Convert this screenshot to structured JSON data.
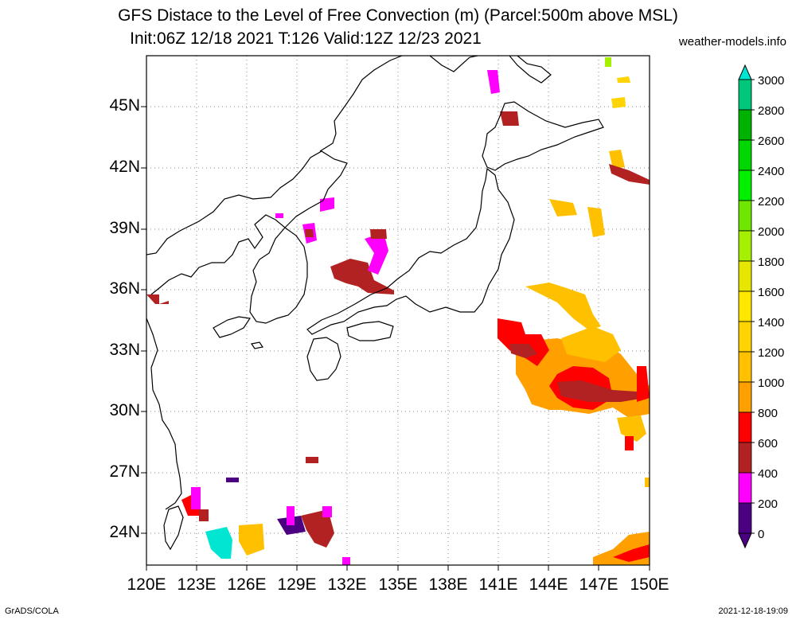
{
  "header": {
    "title_line1": "GFS Distace to the Level of Free Convection (m) (Parcel:500m above MSL)",
    "title_line2": "Init:06Z 12/18 2021 T:126 Valid:12Z 12/23 2021",
    "credit": "weather-models.info"
  },
  "axes": {
    "lat_labels": [
      "45N",
      "42N",
      "39N",
      "36N",
      "33N",
      "30N",
      "27N",
      "24N"
    ],
    "lon_labels": [
      "120E",
      "123E",
      "126E",
      "129E",
      "132E",
      "135E",
      "138E",
      "141E",
      "144E",
      "147E",
      "150E"
    ]
  },
  "colorbar": {
    "labels": [
      "3000",
      "2800",
      "2600",
      "2400",
      "2200",
      "2000",
      "1800",
      "1600",
      "1400",
      "1200",
      "1000",
      "800",
      "600",
      "400",
      "200",
      "0"
    ],
    "colors": [
      "#00e6d2",
      "#00c87a",
      "#00b200",
      "#00d600",
      "#00f000",
      "#6ee600",
      "#a5f000",
      "#e6e600",
      "#ffe600",
      "#ffd400",
      "#ffc000",
      "#ffa000",
      "#ff0000",
      "#b22222",
      "#ff00ff",
      "#4b0082"
    ]
  },
  "footer": {
    "left": "GrADS/COLA",
    "right": "2021-12-18-19:09"
  }
}
